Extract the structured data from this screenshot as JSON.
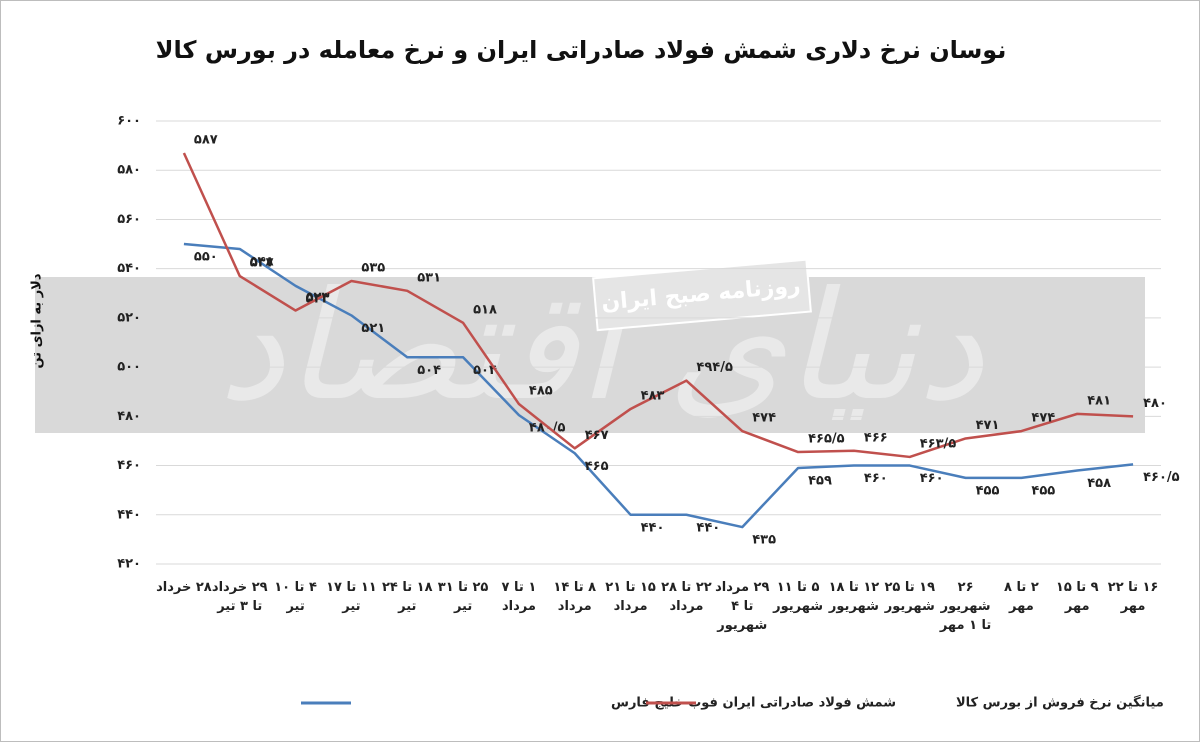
{
  "chart_data": {
    "type": "line",
    "title": "نوسان نرخ دلاری شمش فولاد صادراتی ایران و نرخ معامله در بورس کالا",
    "y_label": "دلار به ازای تن",
    "watermark": "دنیای اقتصاد",
    "watermark_subtitle": "روزنامه صبح ایران",
    "categories": [
      "۲۸ خرداد",
      "۲۹ خرداد تا ۳ تیر",
      "۴ تا ۱۰ تیر",
      "۱۱ تا ۱۷ تیر",
      "۱۸ تا ۲۴ تیر",
      "۲۵ تا ۳۱ تیر",
      "۱ تا ۷ مرداد",
      "۸ تا ۱۴ مرداد",
      "۱۵ تا ۲۱ مرداد",
      "۲۲ تا ۲۸ مرداد",
      "۲۹ مرداد تا ۴ شهریور",
      "۵ تا ۱۱ شهریور",
      "۱۲ تا ۱۸ شهریور",
      "۱۹ تا ۲۵ شهریور",
      "۲۶ شهریور تا ۱ مهر",
      "۲ تا ۸ مهر",
      "۹ تا ۱۵ مهر",
      "۱۶ تا ۲۲ مهر"
    ],
    "series": [
      {
        "name": "شمش فولاد صادراتی ایران فوب خلیج فارس",
        "color": "#4a7ebb",
        "values": [
          550,
          548,
          533,
          521,
          504,
          504,
          480.5,
          465,
          440,
          440,
          435,
          459,
          460,
          460,
          455,
          455,
          458,
          460.5
        ],
        "value_labels": [
          "۵۵۰",
          "۵۴۸",
          "۵۳۳",
          "۵۲۱",
          "۵۰۴",
          "۵۰۴",
          "۴۸۰/۵",
          "۴۶۵",
          "۴۴۰",
          "۴۴۰",
          "۴۳۵",
          "۴۵۹",
          "۴۶۰",
          "۴۶۰",
          "۴۵۵",
          "۴۵۵",
          "۴۵۸",
          "۴۶۰/۵"
        ]
      },
      {
        "name": "میانگین نرخ فروش از بورس کالا",
        "color": "#c0504d",
        "values": [
          587,
          537,
          523,
          535,
          531,
          518,
          485,
          467,
          483,
          494.5,
          474,
          465.5,
          466,
          463.5,
          471,
          474,
          481,
          480
        ],
        "value_labels": [
          "۵۸۷",
          "۵۳۷",
          "۵۲۳",
          "۵۳۵",
          "۵۳۱",
          "۵۱۸",
          "۴۸۵",
          "۴۶۷",
          "۴۸۳",
          "۴۹۴/۵",
          "۴۷۴",
          "۴۶۵/۵",
          "۴۶۶",
          "۴۶۳/۵",
          "۴۷۱",
          "۴۷۴",
          "۴۸۱",
          "۴۸۰"
        ]
      }
    ],
    "ylim": [
      420,
      600
    ],
    "yticks": [
      {
        "value": 420,
        "label": "۴۲۰"
      },
      {
        "value": 440,
        "label": "۴۴۰"
      },
      {
        "value": 460,
        "label": "۴۶۰"
      },
      {
        "value": 480,
        "label": "۴۸۰"
      },
      {
        "value": 500,
        "label": "۵۰۰"
      },
      {
        "value": 520,
        "label": "۵۲۰"
      },
      {
        "value": 540,
        "label": "۵۴۰"
      },
      {
        "value": 560,
        "label": "۵۶۰"
      },
      {
        "value": 580,
        "label": "۵۸۰"
      },
      {
        "value": 600,
        "label": "۶۰۰"
      }
    ],
    "grid": true,
    "legend": "bottom"
  }
}
